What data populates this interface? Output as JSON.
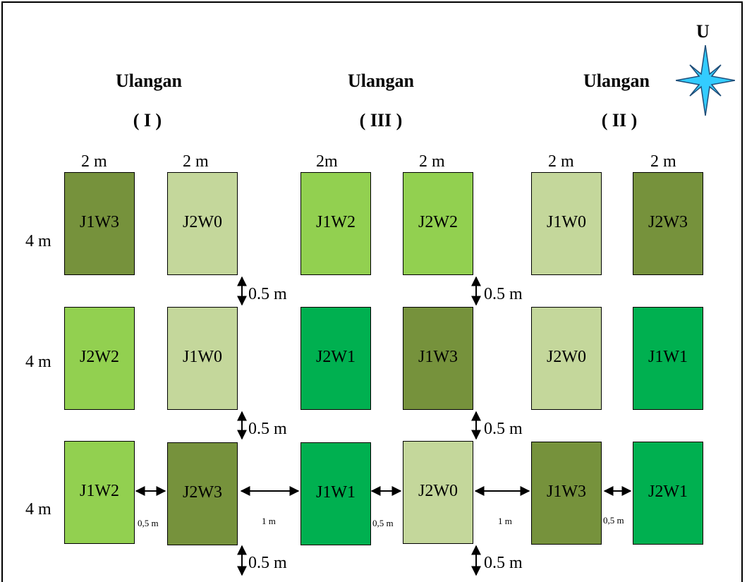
{
  "north": {
    "label": "U"
  },
  "replicates": [
    {
      "heading": "Ulangan",
      "number": "( I )"
    },
    {
      "heading": "Ulangan",
      "number": "( III )"
    },
    {
      "heading": "Ulangan",
      "number": "( II )"
    }
  ],
  "column_widths": [
    "2 m",
    "2 m",
    "2m",
    "2 m",
    "2 m",
    "2 m"
  ],
  "row_heights": [
    "4 m",
    "4 m",
    "4 m"
  ],
  "colors": {
    "W0": "#c4d79b",
    "W1": "#00b050",
    "W2": "#92d050",
    "W3": "#76923c",
    "compass_fill": "#33ccff",
    "compass_stroke": "#1f4e79"
  },
  "plots": [
    {
      "label": "J1W3",
      "level": "W3"
    },
    {
      "label": "J2W0",
      "level": "W0"
    },
    {
      "label": "J1W2",
      "level": "W2"
    },
    {
      "label": "J2W2",
      "level": "W2"
    },
    {
      "label": "J1W0",
      "level": "W0"
    },
    {
      "label": "J2W3",
      "level": "W3"
    },
    {
      "label": "J2W2",
      "level": "W2"
    },
    {
      "label": "J1W0",
      "level": "W0"
    },
    {
      "label": "J2W1",
      "level": "W1"
    },
    {
      "label": "J1W3",
      "level": "W3"
    },
    {
      "label": "J2W0",
      "level": "W0"
    },
    {
      "label": "J1W1",
      "level": "W1"
    },
    {
      "label": "J1W2",
      "level": "W2"
    },
    {
      "label": "J2W3",
      "level": "W3"
    },
    {
      "label": "J1W1",
      "level": "W1"
    },
    {
      "label": "J2W0",
      "level": "W0"
    },
    {
      "label": "J1W3",
      "level": "W3"
    },
    {
      "label": "J2W1",
      "level": "W1"
    }
  ],
  "spacing": {
    "row_gap": "0.5 m",
    "plot_gap": "0,5 m",
    "replicate_gap": "1 m"
  }
}
